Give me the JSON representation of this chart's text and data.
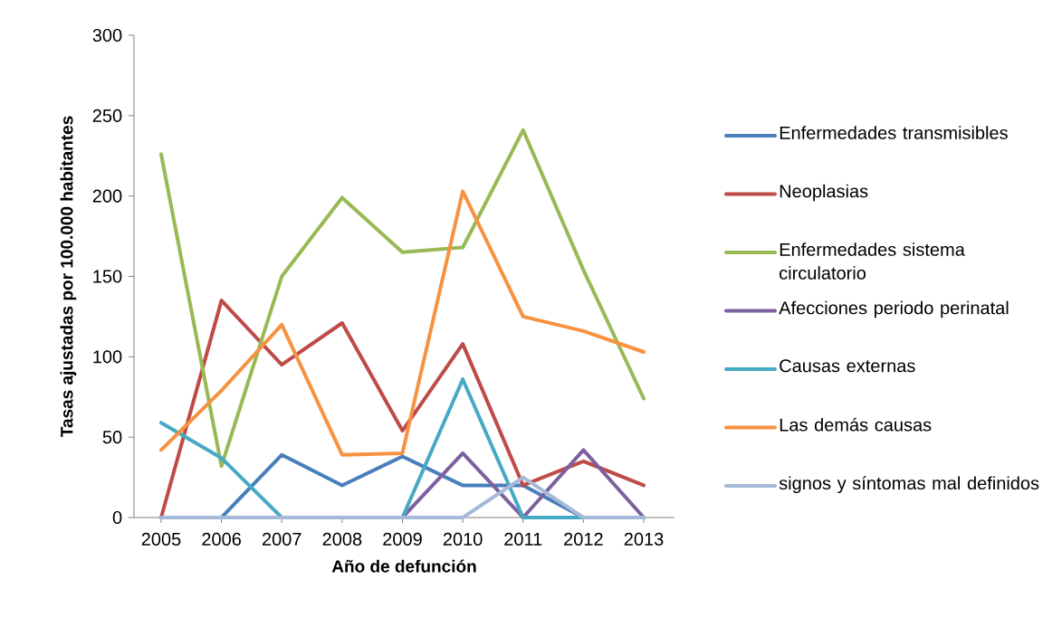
{
  "chart_data": {
    "type": "line",
    "xlabel": "Año de defunción",
    "ylabel": "Tasas ajustadas por 100.000 habitantes",
    "categories": [
      "2005",
      "2006",
      "2007",
      "2008",
      "2009",
      "2010",
      "2011",
      "2012",
      "2013"
    ],
    "ylim": [
      0,
      300
    ],
    "yticks": [
      0,
      50,
      100,
      150,
      200,
      250,
      300
    ],
    "grid": false,
    "legend": "right",
    "marker": "none",
    "series": [
      {
        "name": "Enfermedades transmisibles",
        "color": "#4a7ebb",
        "values": [
          0,
          0,
          39,
          20,
          38,
          20,
          20,
          0,
          0
        ]
      },
      {
        "name": "Neoplasias",
        "color": "#be4b48",
        "values": [
          0,
          135,
          95,
          121,
          54,
          108,
          20,
          35,
          20
        ]
      },
      {
        "name": "Enfermedades sistema circulatorio",
        "color": "#98b954",
        "values": [
          226,
          32,
          150,
          199,
          165,
          168,
          241,
          154,
          74
        ]
      },
      {
        "name": "Afecciones periodo perinatal",
        "color": "#7d60a0",
        "values": [
          0,
          0,
          0,
          0,
          0,
          40,
          0,
          42,
          0
        ]
      },
      {
        "name": "Causas externas",
        "color": "#46aac5",
        "values": [
          59,
          37,
          0,
          0,
          0,
          86,
          0,
          0,
          0
        ]
      },
      {
        "name": "Las demás causas",
        "color": "#f69240",
        "values": [
          42,
          79,
          120,
          39,
          40,
          203,
          125,
          116,
          103
        ]
      },
      {
        "name": "signos y síntomas mal definidos",
        "color": "#a5b9d9",
        "values": [
          0,
          0,
          0,
          0,
          0,
          0,
          25,
          0,
          0
        ]
      }
    ]
  }
}
